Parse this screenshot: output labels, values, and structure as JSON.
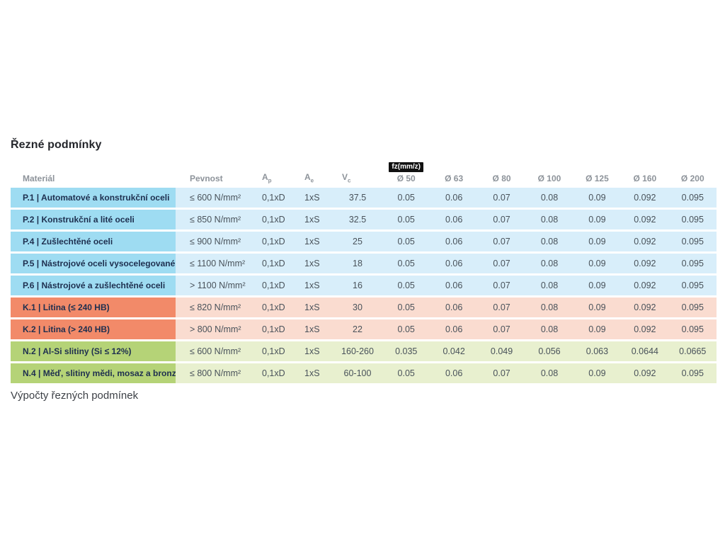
{
  "page": {
    "title": "Řezné podmínky",
    "section_link": "Výpočty řezných podmínek"
  },
  "table": {
    "fz_badge": "fz(mm/z)",
    "headers": {
      "material": "Materiál",
      "pevnost": "Pevnost",
      "ap": {
        "base": "A",
        "sub": "p"
      },
      "ae": {
        "base": "A",
        "sub": "e"
      },
      "vc": {
        "base": "V",
        "sub": "c"
      },
      "diameters": [
        "Ø 50",
        "Ø 63",
        "Ø 80",
        "Ø 100",
        "Ø 125",
        "Ø 160",
        "Ø 200"
      ]
    },
    "rows": [
      {
        "group": "p",
        "material": "P.1 | Automatové a konstrukční oceli",
        "pevnost": "≤ 600 N/mm²",
        "ap": "0,1xD",
        "ae": "1xS",
        "vc": "37.5",
        "fz": [
          "0.05",
          "0.06",
          "0.07",
          "0.08",
          "0.09",
          "0.092",
          "0.095"
        ]
      },
      {
        "group": "p",
        "material": "P.2 | Konstrukční a lité oceli",
        "pevnost": "≤ 850 N/mm²",
        "ap": "0,1xD",
        "ae": "1xS",
        "vc": "32.5",
        "fz": [
          "0.05",
          "0.06",
          "0.07",
          "0.08",
          "0.09",
          "0.092",
          "0.095"
        ]
      },
      {
        "group": "p",
        "material": "P.4 | Zušlechtěné oceli",
        "pevnost": "≤ 900 N/mm²",
        "ap": "0,1xD",
        "ae": "1xS",
        "vc": "25",
        "fz": [
          "0.05",
          "0.06",
          "0.07",
          "0.08",
          "0.09",
          "0.092",
          "0.095"
        ]
      },
      {
        "group": "p",
        "material": "P.5 | Nástrojové oceli vysocelegované",
        "pevnost": "≤ 1100 N/mm²",
        "ap": "0,1xD",
        "ae": "1xS",
        "vc": "18",
        "fz": [
          "0.05",
          "0.06",
          "0.07",
          "0.08",
          "0.09",
          "0.092",
          "0.095"
        ]
      },
      {
        "group": "p",
        "material": "P.6 | Nástrojové a zušlechtěné oceli",
        "pevnost": "> 1100 N/mm²",
        "ap": "0,1xD",
        "ae": "1xS",
        "vc": "16",
        "fz": [
          "0.05",
          "0.06",
          "0.07",
          "0.08",
          "0.09",
          "0.092",
          "0.095"
        ]
      },
      {
        "group": "k",
        "material": "K.1 | Litina (≤ 240 HB)",
        "pevnost": "≤ 820 N/mm²",
        "ap": "0,1xD",
        "ae": "1xS",
        "vc": "30",
        "fz": [
          "0.05",
          "0.06",
          "0.07",
          "0.08",
          "0.09",
          "0.092",
          "0.095"
        ]
      },
      {
        "group": "k",
        "material": "K.2 | Litina (> 240 HB)",
        "pevnost": "> 800 N/mm²",
        "ap": "0,1xD",
        "ae": "1xS",
        "vc": "22",
        "fz": [
          "0.05",
          "0.06",
          "0.07",
          "0.08",
          "0.09",
          "0.092",
          "0.095"
        ]
      },
      {
        "group": "n",
        "material": "N.2 | Al-Si slitiny (Si ≤ 12%)",
        "pevnost": "≤ 600 N/mm²",
        "ap": "0,1xD",
        "ae": "1xS",
        "vc": "160-260",
        "fz": [
          "0.035",
          "0.042",
          "0.049",
          "0.056",
          "0.063",
          "0.0644",
          "0.0665"
        ]
      },
      {
        "group": "n",
        "material": "N.4 | Měď, slitiny mědi, mosaz a bronz",
        "pevnost": "≤ 800 N/mm²",
        "ap": "0,1xD",
        "ae": "1xS",
        "vc": "60-100",
        "fz": [
          "0.05",
          "0.06",
          "0.07",
          "0.08",
          "0.09",
          "0.092",
          "0.095"
        ]
      }
    ]
  },
  "colors": {
    "p_material": "#9edcf2",
    "p_row": "#d8eefa",
    "k_material": "#f28a69",
    "k_row": "#fadcd0",
    "n_material": "#b5d377",
    "n_row": "#e8f0cf",
    "badge_bg": "#111111",
    "badge_text": "#ffffff",
    "material_text": "#1e2f4f",
    "value_text": "#49525a",
    "header_text": "#8d939a"
  }
}
